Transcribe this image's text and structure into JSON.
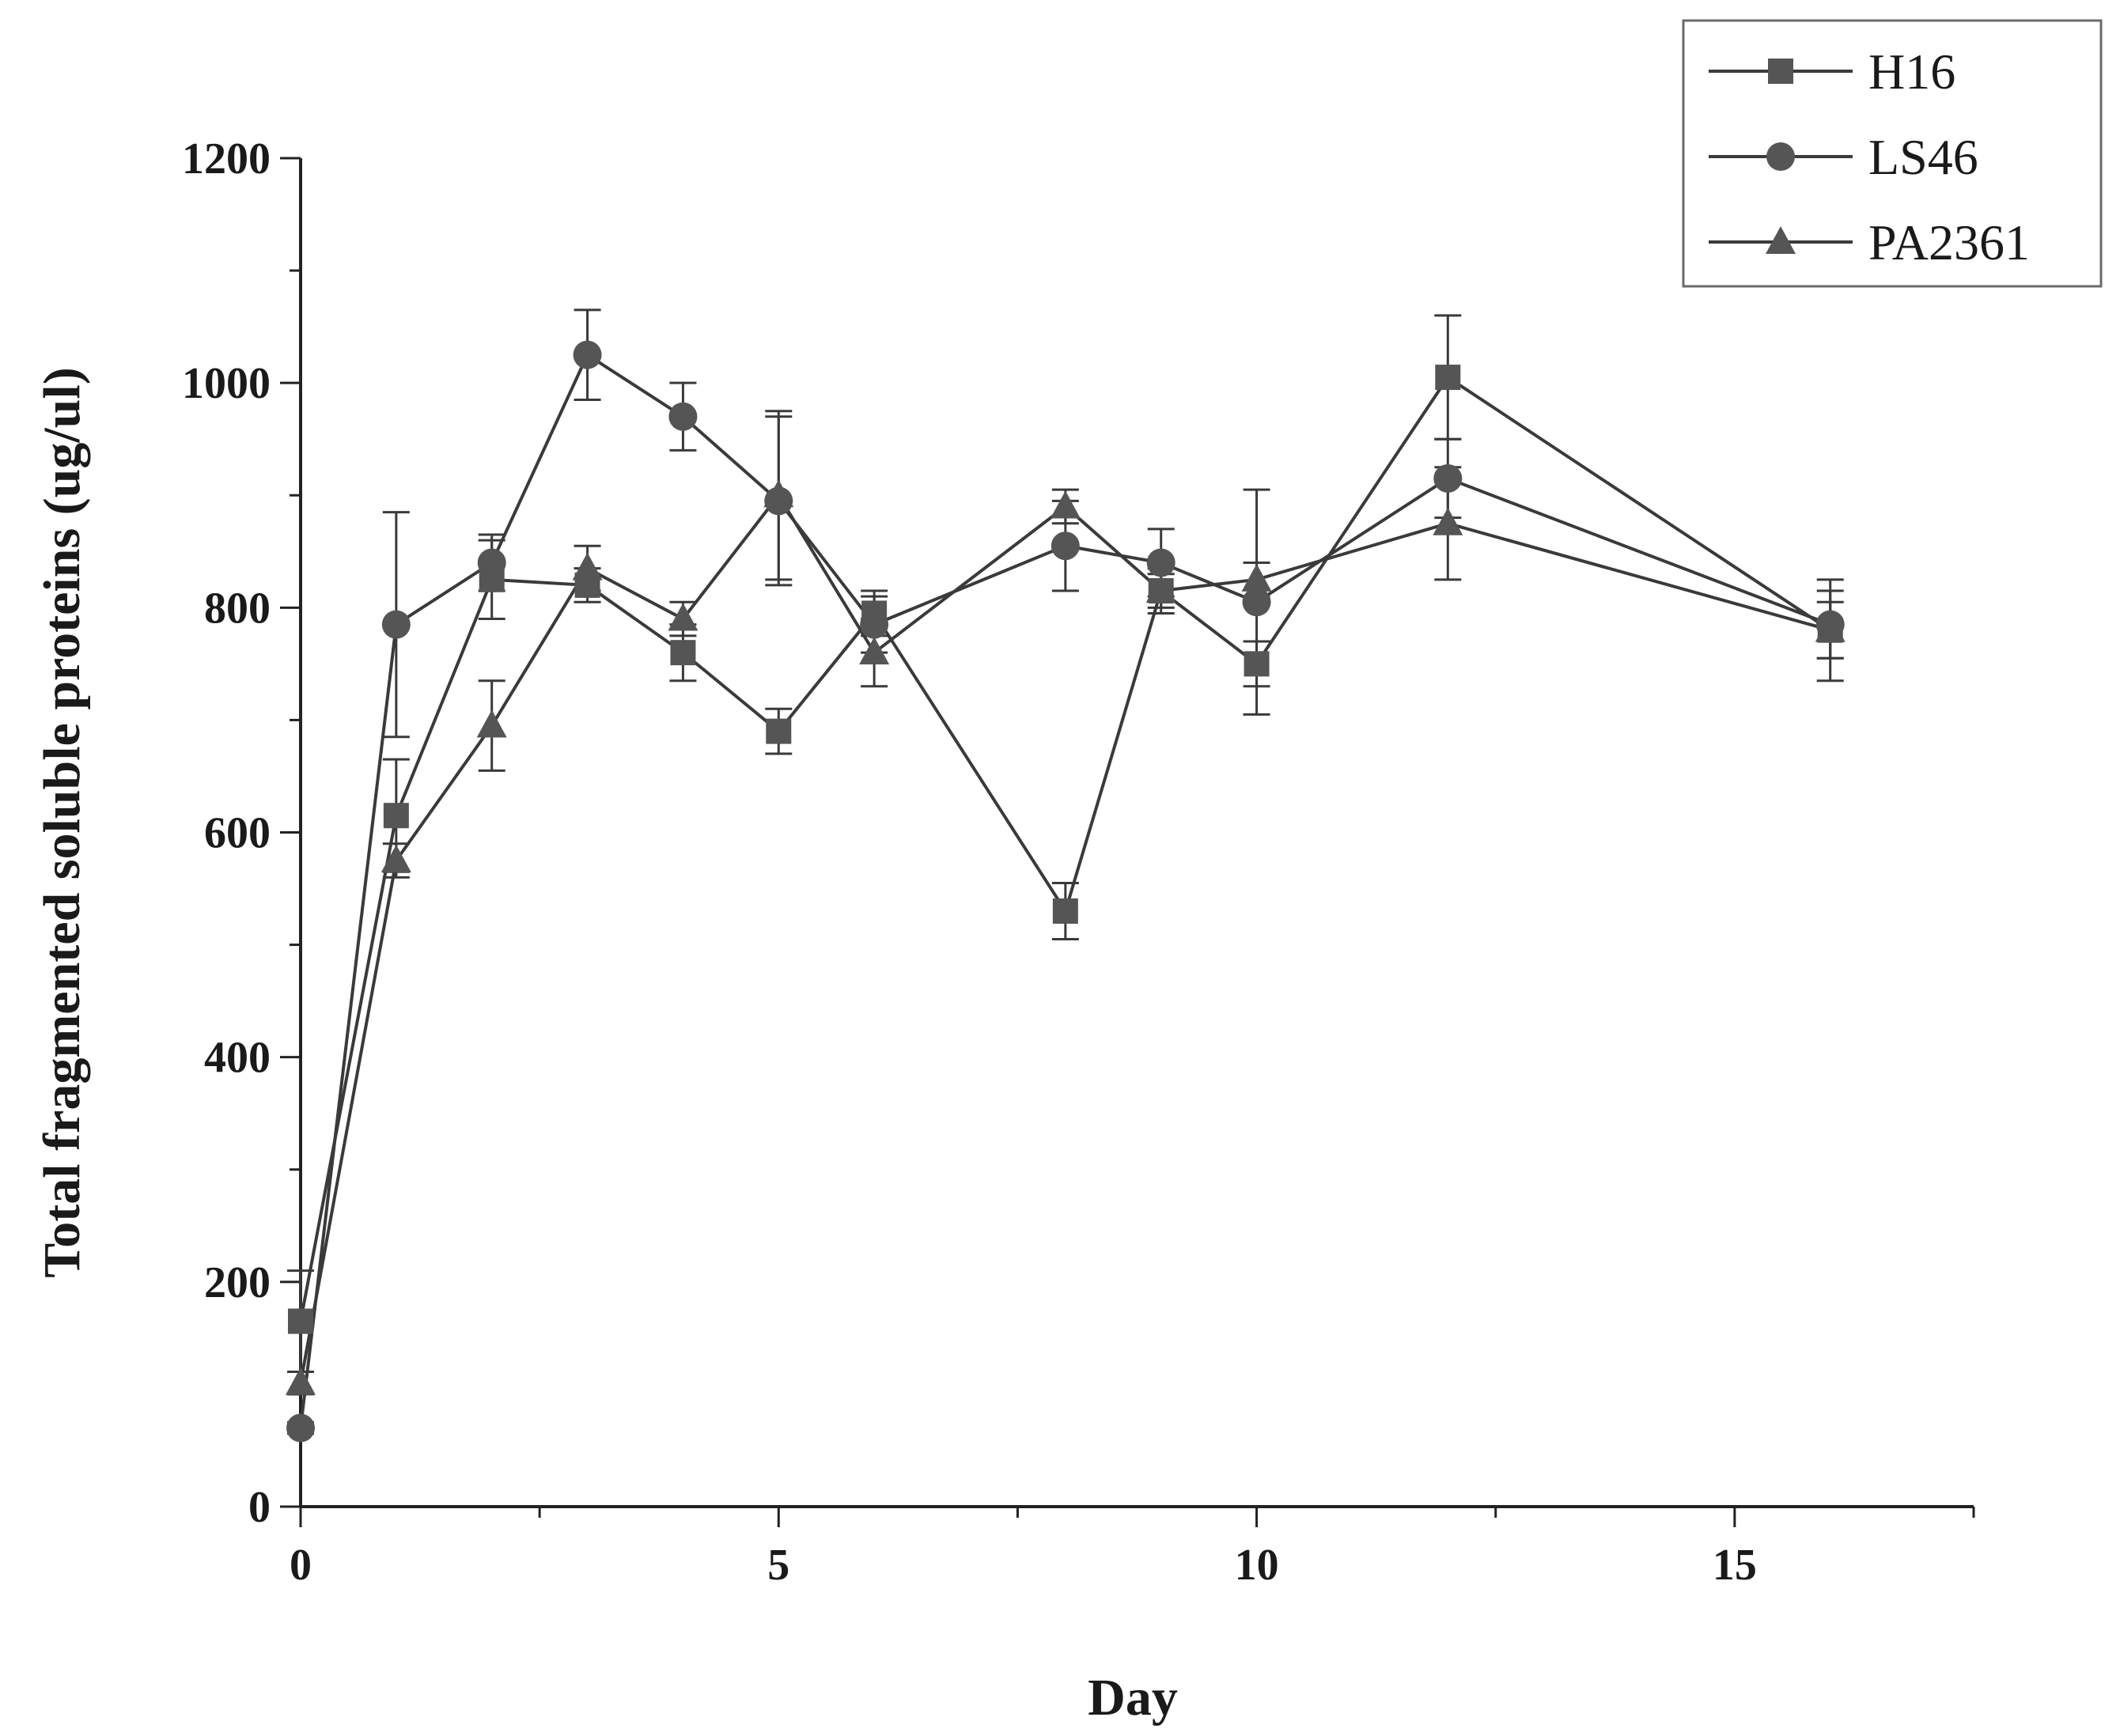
{
  "chart_data": {
    "type": "line",
    "title": "",
    "xlabel": "Day",
    "ylabel": "Total fragmented soluble proteins (ug/ul)",
    "xlim": [
      0,
      17.5
    ],
    "ylim": [
      0,
      1200
    ],
    "xticks": [
      0,
      5,
      10,
      15
    ],
    "yticks": [
      0,
      200,
      400,
      600,
      800,
      1000,
      1200
    ],
    "grid": false,
    "legend_position": "top-right",
    "colors": {
      "line": "#3a3a3a",
      "marker": "#555555"
    },
    "series": [
      {
        "name": "H16",
        "marker": "square",
        "x": [
          0,
          1,
          2,
          3,
          4,
          5,
          6,
          8,
          9,
          10,
          12,
          16
        ],
        "values": [
          165,
          615,
          825,
          820,
          760,
          690,
          795,
          530,
          815,
          750,
          1005,
          780
        ],
        "errors": [
          45,
          50,
          35,
          15,
          25,
          20,
          20,
          25,
          20,
          20,
          55,
          25
        ]
      },
      {
        "name": "LS46",
        "marker": "circle",
        "x": [
          0,
          1,
          2,
          3,
          4,
          5,
          6,
          8,
          9,
          10,
          12,
          16
        ],
        "values": [
          70,
          785,
          840,
          1025,
          970,
          895,
          785,
          855,
          840,
          805,
          915,
          785
        ],
        "errors": [
          5,
          100,
          25,
          40,
          30,
          75,
          25,
          40,
          30,
          100,
          35,
          30
        ]
      },
      {
        "name": "PA2361",
        "marker": "triangle",
        "x": [
          0,
          1,
          2,
          3,
          4,
          5,
          6,
          8,
          9,
          10,
          12,
          16
        ],
        "values": [
          110,
          575,
          695,
          835,
          790,
          900,
          760,
          890,
          815,
          825,
          875,
          780
        ],
        "errors": [
          10,
          15,
          40,
          20,
          15,
          75,
          30,
          15,
          15,
          15,
          50,
          45
        ]
      }
    ]
  }
}
